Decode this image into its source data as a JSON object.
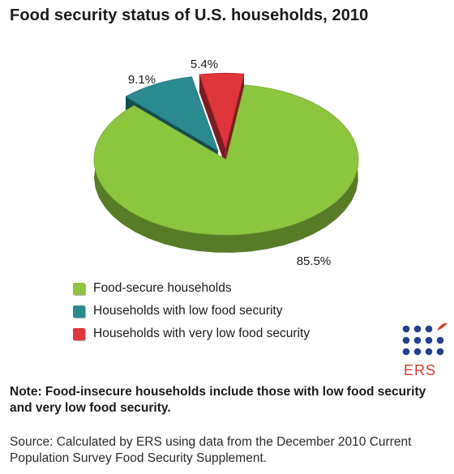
{
  "chart_data": {
    "type": "pie",
    "title": "Food security status of U.S. households, 2010",
    "slices": [
      {
        "name": "Food-secure households",
        "value": 85.5,
        "label": "85.5%",
        "color": "#8cc63f"
      },
      {
        "name": "Households with low food security",
        "value": 9.1,
        "label": "9.1%",
        "color": "#2a8a8f"
      },
      {
        "name": "Households with very low food security",
        "value": 5.4,
        "label": "5.4%",
        "color": "#e0353a"
      }
    ],
    "legend_position": "bottom-left"
  },
  "logo": {
    "text": "ERS",
    "accent_color": "#d63a2c",
    "dot_color": "#243f8f"
  },
  "note": "Note: Food-insecure households include those with low food security and very low food security.",
  "source": "Source: Calculated by ERS using data from the December 2010 Current Population Survey Food Security Supplement."
}
